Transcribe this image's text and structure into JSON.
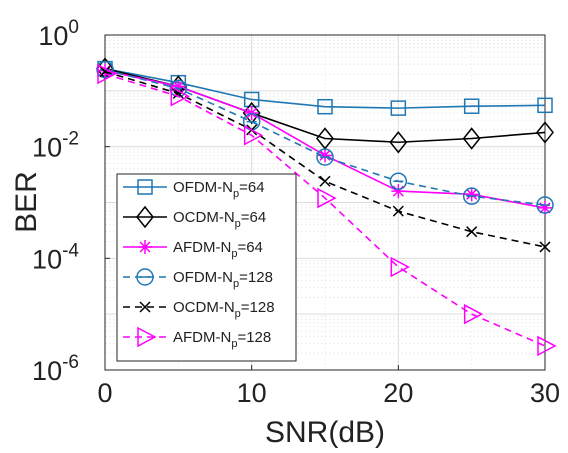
{
  "chart_data": {
    "type": "line",
    "xlabel": "SNR(dB)",
    "ylabel": "BER",
    "xlim": [
      0,
      30
    ],
    "ylim": [
      1e-06,
      1
    ],
    "y_scale": "log",
    "grid": true,
    "legend_position": "bottom-left",
    "x_ticks": [
      "0",
      "10",
      "20",
      "30"
    ],
    "y_ticks": [
      {
        "base": "10",
        "exp": "0"
      },
      {
        "base": "10",
        "exp": "-2"
      },
      {
        "base": "10",
        "exp": "-4"
      },
      {
        "base": "10",
        "exp": "-6"
      }
    ],
    "x": [
      0,
      5,
      10,
      15,
      20,
      25,
      30
    ],
    "series": [
      {
        "name_main": "OFDM-N",
        "name_sub": "p",
        "name_suffix": "=64",
        "color": "#1f77b4",
        "dash": false,
        "marker": "square",
        "values": [
          0.25,
          0.14,
          0.07,
          0.052,
          0.049,
          0.053,
          0.055
        ]
      },
      {
        "name_main": "OCDM-N",
        "name_sub": "p",
        "name_suffix": "=64",
        "color": "#000000",
        "dash": false,
        "marker": "diamond",
        "values": [
          0.25,
          0.12,
          0.04,
          0.014,
          0.012,
          0.014,
          0.018
        ]
      },
      {
        "name_main": "AFDM-N",
        "name_sub": "p",
        "name_suffix": "=64",
        "color": "#ff00ff",
        "dash": false,
        "marker": "asterisk",
        "values": [
          0.23,
          0.12,
          0.04,
          0.007,
          0.0016,
          0.0014,
          0.0008
        ]
      },
      {
        "name_main": "OFDM-N",
        "name_sub": "p",
        "name_suffix": "=128",
        "color": "#1f77b4",
        "dash": true,
        "marker": "circle",
        "values": [
          0.24,
          0.11,
          0.028,
          0.0065,
          0.0024,
          0.0013,
          0.0009
        ]
      },
      {
        "name_main": "OCDM-N",
        "name_sub": "p",
        "name_suffix": "=128",
        "color": "#000000",
        "dash": true,
        "marker": "x",
        "values": [
          0.22,
          0.09,
          0.02,
          0.0024,
          0.0007,
          0.0003,
          0.00016
        ]
      },
      {
        "name_main": "AFDM-N",
        "name_sub": "p",
        "name_suffix": "=128",
        "color": "#ff00ff",
        "dash": true,
        "marker": "triangle-right",
        "values": [
          0.2,
          0.08,
          0.016,
          0.0012,
          7e-05,
          1e-05,
          2.7e-06
        ]
      }
    ]
  }
}
